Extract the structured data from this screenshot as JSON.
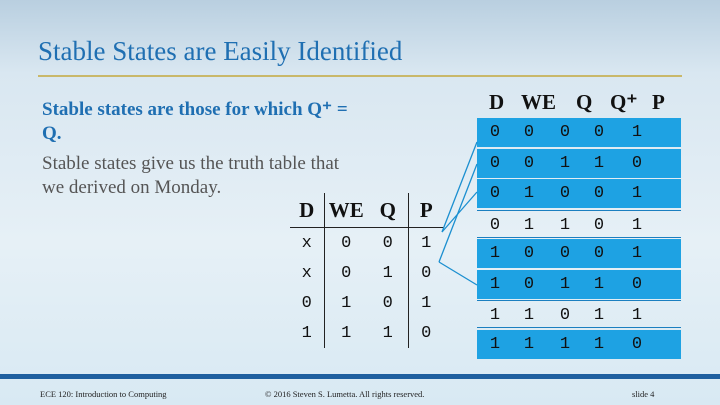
{
  "slide": {
    "title": "Stable States are Easily Identified",
    "subhead": "Stable states are those for which Q⁺ = Q.",
    "body": "Stable states give us the truth table that we derived on Monday."
  },
  "small_table": {
    "headers": [
      "D",
      "WE",
      "Q",
      "P"
    ],
    "rows": [
      [
        "x",
        "0",
        "0",
        "1"
      ],
      [
        "x",
        "0",
        "1",
        "0"
      ],
      [
        "0",
        "1",
        "0",
        "1"
      ],
      [
        "1",
        "1",
        "1",
        "0"
      ]
    ]
  },
  "big_table": {
    "headers": [
      "D",
      "WE",
      "Q",
      "Q⁺",
      "P"
    ],
    "rows": [
      {
        "cells": [
          "0",
          "0",
          "0",
          "0",
          "1"
        ],
        "stable": true
      },
      {
        "cells": [
          "0",
          "0",
          "1",
          "1",
          "0"
        ],
        "stable": true
      },
      {
        "cells": [
          "0",
          "1",
          "0",
          "0",
          "1"
        ],
        "stable": true
      },
      {
        "cells": [
          "0",
          "1",
          "1",
          "0",
          "1"
        ],
        "stable": false
      },
      {
        "cells": [
          "1",
          "0",
          "0",
          "0",
          "1"
        ],
        "stable": true
      },
      {
        "cells": [
          "1",
          "0",
          "1",
          "1",
          "0"
        ],
        "stable": true
      },
      {
        "cells": [
          "1",
          "1",
          "0",
          "1",
          "1"
        ],
        "stable": false
      },
      {
        "cells": [
          "1",
          "1",
          "1",
          "1",
          "0"
        ],
        "stable": true
      }
    ],
    "highlight_color": "#1ea2e3"
  },
  "footer": {
    "course": "ECE 120: Introduction to Computing",
    "copyright": "© 2016 Steven S. Lumetta.  All rights reserved.",
    "slide_number": "slide 4"
  },
  "colors": {
    "title": "#1f6fb2",
    "rule": "#c9b86a",
    "footer_bar": "#1f5f9f"
  }
}
